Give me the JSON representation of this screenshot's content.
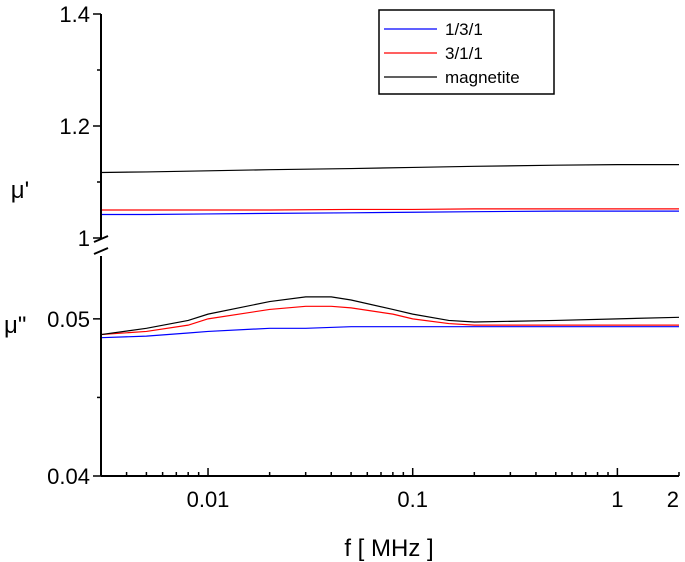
{
  "chart_data": {
    "type": "line",
    "xlabel": "f [ MHz ]",
    "x_scale": "log",
    "xlim": [
      0.003,
      2
    ],
    "x_ticks": [
      {
        "value": 0.01,
        "label": "0.01"
      },
      {
        "value": 0.1,
        "label": "0.1"
      },
      {
        "value": 1,
        "label": "1"
      },
      {
        "value": 2,
        "label": "2"
      }
    ],
    "legend": {
      "placement": "top-right"
    },
    "panels": [
      {
        "id": "mu_prime",
        "ylabel": "μ'",
        "ylim": [
          1.0,
          1.4
        ],
        "y_ticks": [
          {
            "value": 1.0,
            "label": "1"
          },
          {
            "value": 1.2,
            "label": "1.2"
          },
          {
            "value": 1.4,
            "label": "1.4"
          }
        ],
        "series": [
          {
            "name": "1/3/1",
            "color": "#0000ff",
            "x": [
              0.003,
              0.005,
              0.01,
              0.02,
              0.05,
              0.1,
              0.2,
              0.5,
              1,
              2
            ],
            "y": [
              1.042,
              1.042,
              1.043,
              1.044,
              1.045,
              1.046,
              1.047,
              1.048,
              1.048,
              1.048
            ]
          },
          {
            "name": "3/1/1",
            "color": "#ff0000",
            "x": [
              0.003,
              0.005,
              0.01,
              0.02,
              0.05,
              0.1,
              0.2,
              0.5,
              1,
              2
            ],
            "y": [
              1.05,
              1.05,
              1.05,
              1.05,
              1.051,
              1.051,
              1.052,
              1.052,
              1.052,
              1.052
            ]
          },
          {
            "name": "magnetite",
            "color": "#000000",
            "x": [
              0.003,
              0.005,
              0.01,
              0.02,
              0.05,
              0.1,
              0.2,
              0.5,
              1,
              2
            ],
            "y": [
              1.117,
              1.118,
              1.12,
              1.122,
              1.124,
              1.126,
              1.128,
              1.13,
              1.131,
              1.131
            ]
          }
        ]
      },
      {
        "id": "mu_double_prime",
        "ylabel": "μ\"",
        "ylim": [
          0.04,
          0.054
        ],
        "y_ticks": [
          {
            "value": 0.04,
            "label": "0.04"
          },
          {
            "value": 0.05,
            "label": "0.05"
          }
        ],
        "series": [
          {
            "name": "1/3/1",
            "color": "#0000ff",
            "x": [
              0.003,
              0.005,
              0.008,
              0.01,
              0.02,
              0.03,
              0.05,
              0.1,
              0.2,
              0.5,
              1,
              2
            ],
            "y": [
              0.0488,
              0.0489,
              0.0491,
              0.0492,
              0.0494,
              0.0494,
              0.0495,
              0.0495,
              0.0495,
              0.0495,
              0.0495,
              0.0495
            ]
          },
          {
            "name": "3/1/1",
            "color": "#ff0000",
            "x": [
              0.003,
              0.005,
              0.008,
              0.01,
              0.02,
              0.03,
              0.04,
              0.05,
              0.08,
              0.1,
              0.15,
              0.2,
              0.5,
              1,
              2
            ],
            "y": [
              0.049,
              0.0492,
              0.0496,
              0.05,
              0.0506,
              0.0508,
              0.0508,
              0.0507,
              0.0503,
              0.05,
              0.0497,
              0.0496,
              0.0496,
              0.0496,
              0.0496
            ]
          },
          {
            "name": "magnetite",
            "color": "#000000",
            "x": [
              0.003,
              0.005,
              0.008,
              0.01,
              0.02,
              0.03,
              0.04,
              0.05,
              0.08,
              0.1,
              0.15,
              0.2,
              0.5,
              1,
              2
            ],
            "y": [
              0.049,
              0.0494,
              0.0499,
              0.0503,
              0.0511,
              0.0514,
              0.0514,
              0.0512,
              0.0506,
              0.0503,
              0.0499,
              0.0498,
              0.0499,
              0.05,
              0.0501
            ]
          }
        ]
      }
    ]
  }
}
